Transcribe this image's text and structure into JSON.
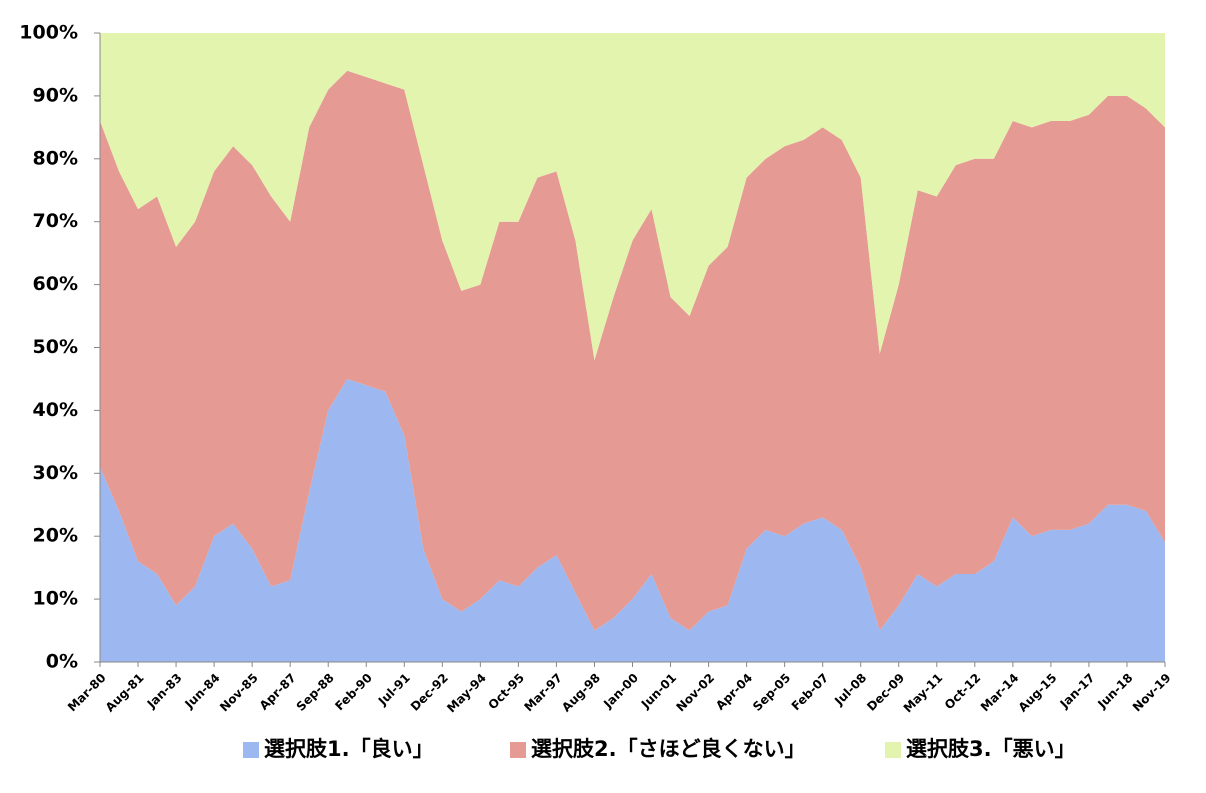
{
  "chart_data": {
    "type": "stacked_area_percent",
    "categories": [
      "Mar-80",
      null,
      "Aug-81",
      null,
      "Jan-83",
      null,
      "Jun-84",
      null,
      "Nov-85",
      null,
      "Apr-87",
      null,
      "Sep-88",
      null,
      "Feb-90",
      null,
      "Jul-91",
      null,
      "Dec-92",
      null,
      "May-94",
      null,
      "Oct-95",
      null,
      "Mar-97",
      null,
      "Aug-98",
      null,
      "Jan-00",
      null,
      "Jun-01",
      null,
      "Nov-02",
      null,
      "Apr-04",
      null,
      "Sep-05",
      null,
      "Feb-07",
      null,
      "Jul-08",
      null,
      "Dec-09",
      null,
      "May-11",
      null,
      "Oct-12",
      null,
      "Mar-14",
      null,
      "Aug-15",
      null,
      "Jan-17",
      null,
      "Jun-18",
      null,
      "Nov-19"
    ],
    "series": [
      {
        "name": "選択肢1.「良い」",
        "color": "#9db8f0",
        "values": [
          31,
          24,
          16,
          14,
          9,
          12,
          20,
          22,
          18,
          12,
          13,
          27,
          40,
          45,
          44,
          43,
          36,
          18,
          10,
          8,
          10,
          13,
          12,
          15,
          17,
          11,
          5,
          7,
          10,
          14,
          7,
          5,
          8,
          9,
          18,
          21,
          20,
          22,
          23,
          21,
          15,
          5,
          9,
          14,
          12,
          14,
          14,
          16,
          23,
          20,
          21,
          21,
          22,
          25,
          25,
          24,
          19
        ]
      },
      {
        "name": "選択肢2.「さほど良くない」",
        "color": "#e59a94",
        "values": [
          55,
          54,
          56,
          60,
          57,
          58,
          58,
          60,
          61,
          62,
          57,
          58,
          51,
          49,
          49,
          49,
          55,
          61,
          57,
          51,
          50,
          57,
          58,
          62,
          61,
          56,
          43,
          51,
          57,
          58,
          51,
          50,
          55,
          57,
          59,
          59,
          62,
          61,
          62,
          62,
          62,
          44,
          51,
          61,
          62,
          65,
          66,
          64,
          63,
          65,
          65,
          65,
          65,
          65,
          65,
          64,
          66
        ]
      },
      {
        "name": "選択肢3.「悪い」",
        "color": "#e2f4ad",
        "values": [
          14,
          22,
          28,
          26,
          34,
          30,
          22,
          18,
          21,
          26,
          30,
          15,
          9,
          6,
          7,
          8,
          9,
          21,
          33,
          41,
          40,
          30,
          30,
          23,
          22,
          33,
          52,
          42,
          33,
          28,
          42,
          45,
          37,
          34,
          23,
          20,
          18,
          17,
          15,
          17,
          23,
          51,
          40,
          25,
          26,
          21,
          20,
          20,
          14,
          15,
          14,
          14,
          13,
          10,
          10,
          12,
          15
        ]
      }
    ],
    "ylim": [
      0,
      100
    ],
    "yticks": [
      {
        "value": 0,
        "label": "0%"
      },
      {
        "value": 10,
        "label": "10%"
      },
      {
        "value": 20,
        "label": "20%"
      },
      {
        "value": 30,
        "label": "30%"
      },
      {
        "value": 40,
        "label": "40%"
      },
      {
        "value": 50,
        "label": "50%"
      },
      {
        "value": 60,
        "label": "60%"
      },
      {
        "value": 70,
        "label": "70%"
      },
      {
        "value": 80,
        "label": "80%"
      },
      {
        "value": 90,
        "label": "90%"
      },
      {
        "value": 100,
        "label": "100%"
      }
    ],
    "legend": "bottom"
  }
}
